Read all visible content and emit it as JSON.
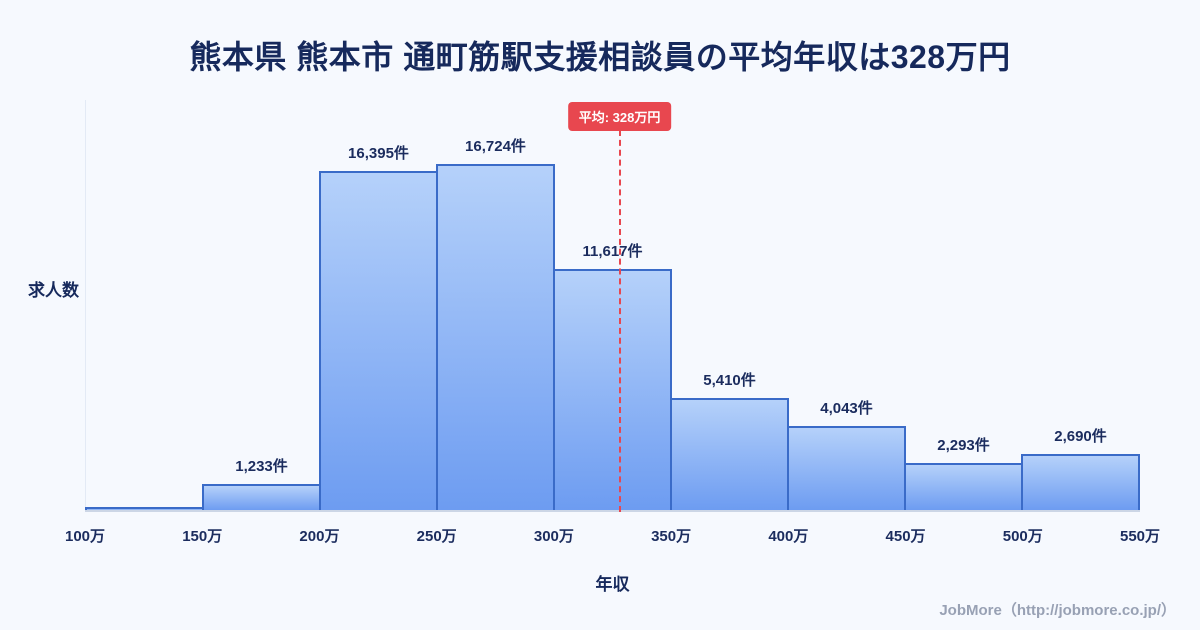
{
  "title": "熊本県 熊本市 通町筋駅支援相談員の平均年収は328万円",
  "footer": "JobMore（http://jobmore.co.jp/）",
  "chart_data": {
    "type": "bar",
    "title": "熊本県 熊本市 通町筋駅支援相談員の平均年収は328万円",
    "xlabel": "年収",
    "ylabel": "求人数",
    "x_ticks": [
      "100万",
      "150万",
      "200万",
      "250万",
      "300万",
      "350万",
      "400万",
      "450万",
      "500万",
      "550万"
    ],
    "categories": [
      "100万-150万",
      "150万-200万",
      "200万-250万",
      "250万-300万",
      "300万-350万",
      "350万-400万",
      "400万-450万",
      "450万-500万",
      "500万-550万"
    ],
    "values": [
      150,
      1233,
      16395,
      16724,
      11617,
      5410,
      4043,
      2293,
      2690
    ],
    "labels": [
      "",
      "1,233件",
      "16,395件",
      "16,724件",
      "11,617件",
      "5,410件",
      "4,043件",
      "2,293件",
      "2,690件"
    ],
    "ylim": [
      0,
      19800
    ],
    "grid": "off",
    "legend": "none",
    "average": {
      "label": "平均: 328万円",
      "value": 328,
      "x_range": [
        100,
        550
      ]
    },
    "colors": {
      "background": "#f6f9fe",
      "bar_gradient_top": "#b5d1fa",
      "bar_gradient_bottom": "#6d9cf1",
      "bar_border": "#3a6bc8",
      "average_line": "#e8474f",
      "text": "#16295c",
      "axis": "#ccd6e6",
      "footer_text": "#98a1b4"
    }
  }
}
